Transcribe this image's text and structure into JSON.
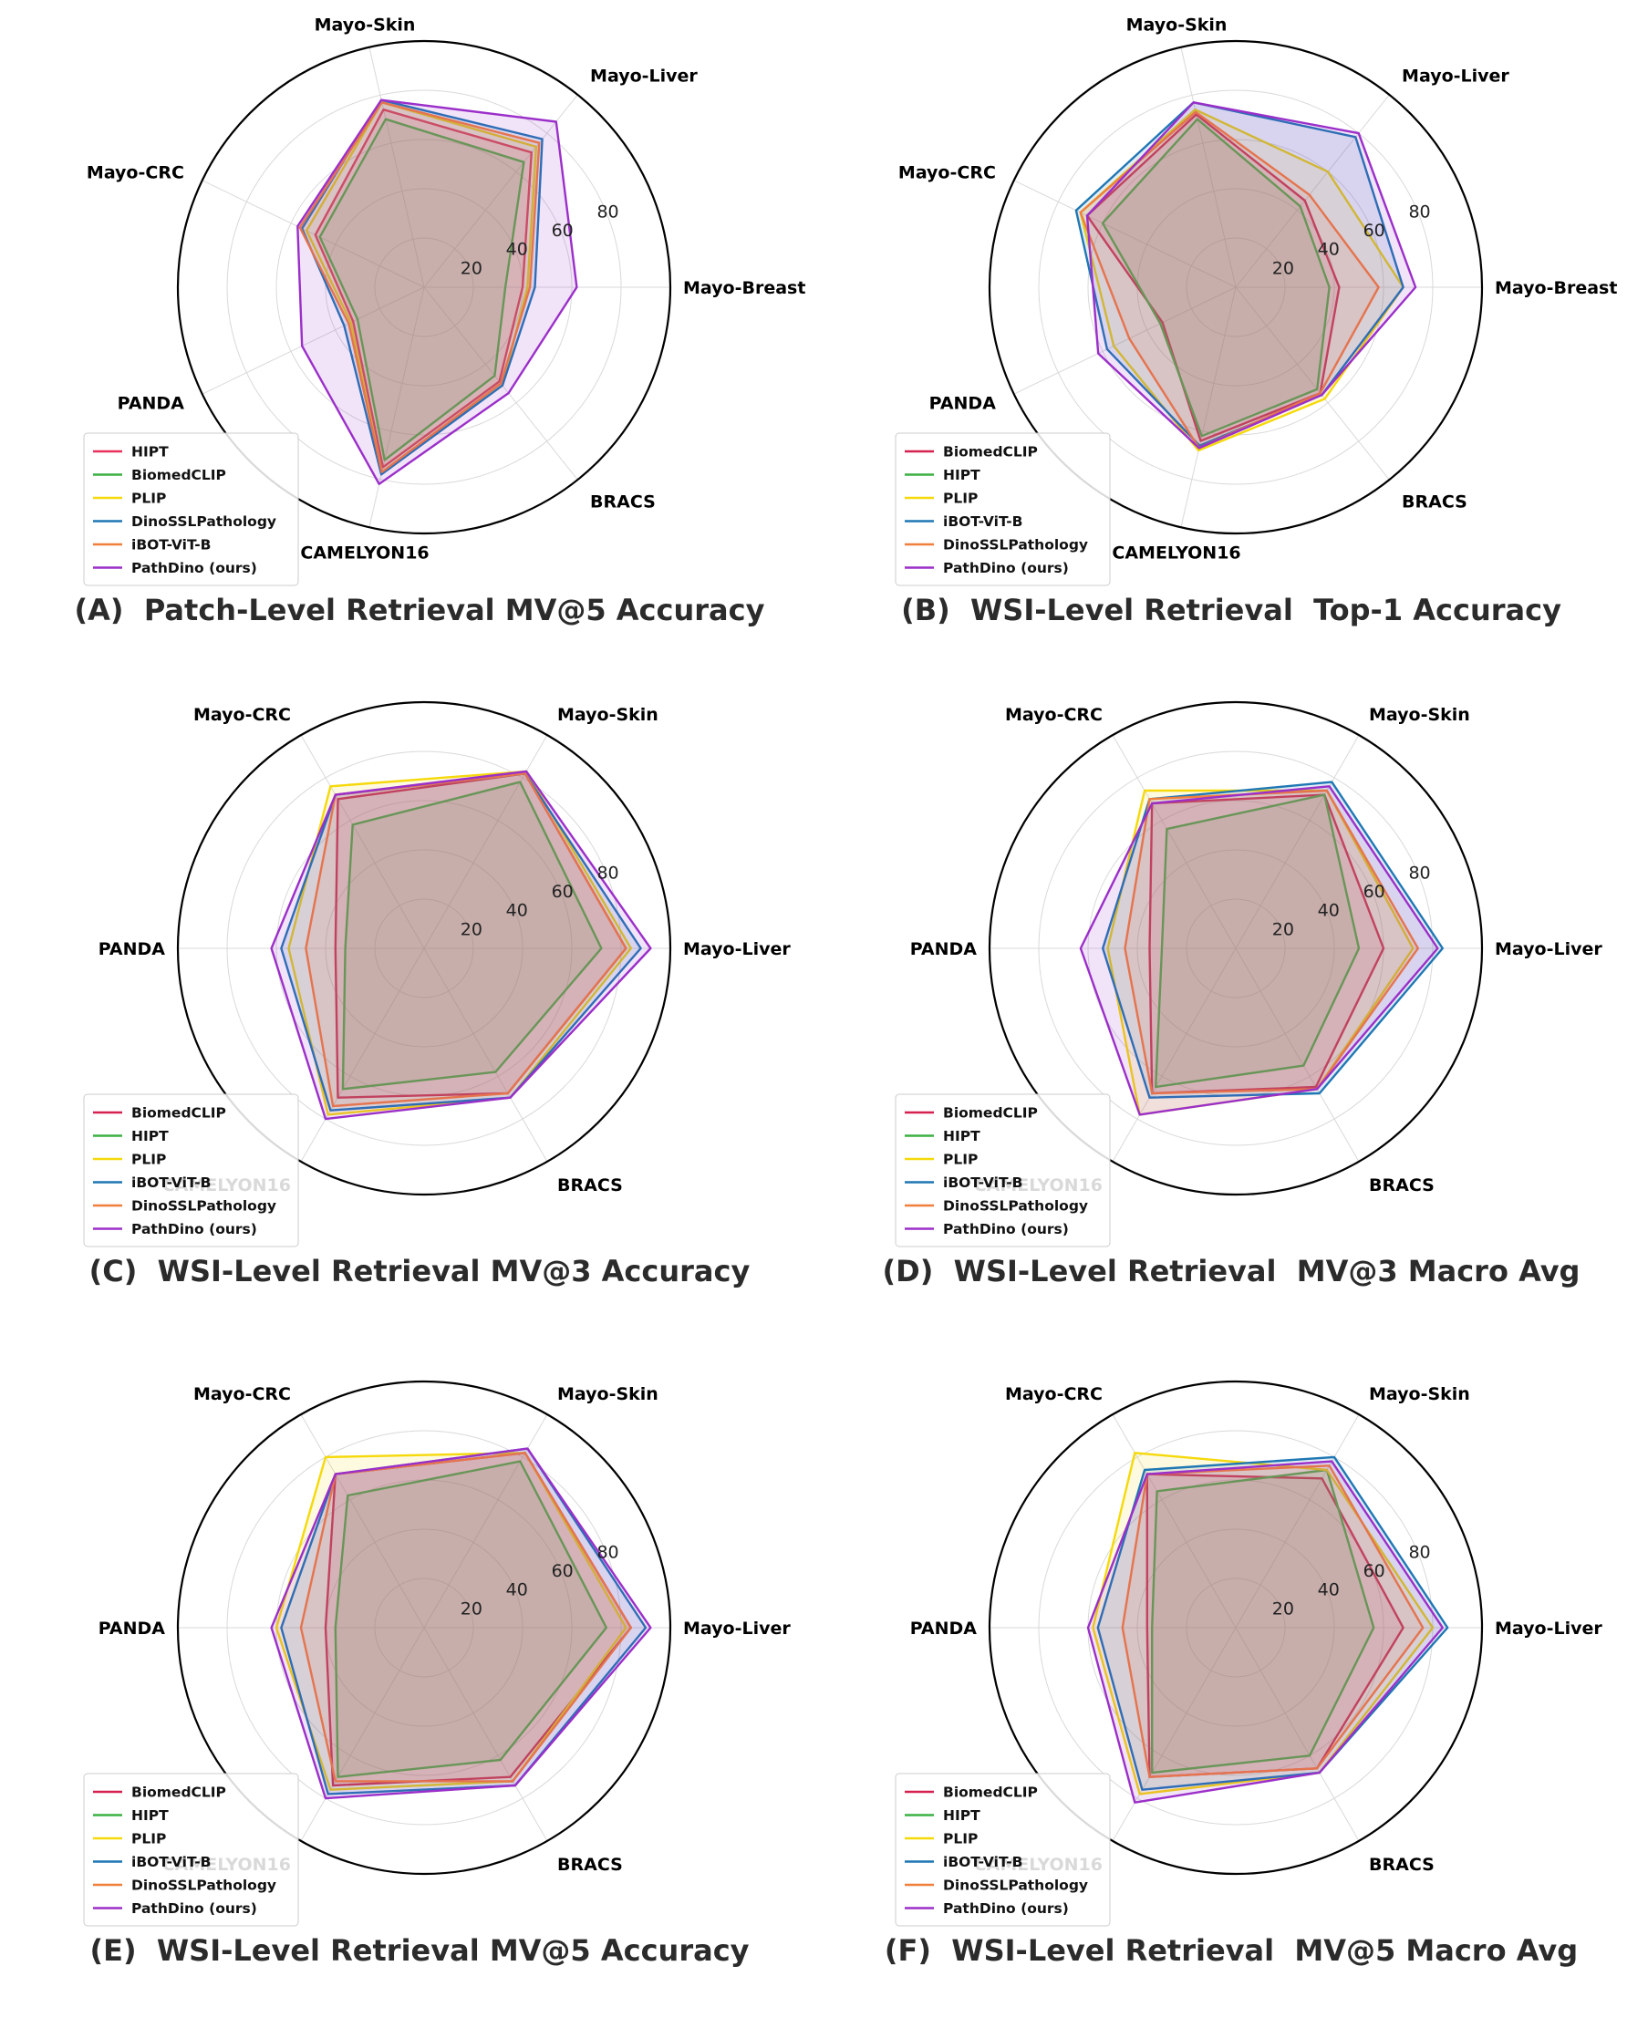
{
  "chart_data": [
    {
      "type": "radar",
      "panel_label": "(A)",
      "title": "Patch-Level Retrieval MV@5 Accuracy",
      "axes": [
        "Mayo-Breast",
        "Mayo-Liver",
        "Mayo-Skin",
        "Mayo-CRC",
        "PANDA",
        "CAMELYON16",
        "BRACS"
      ],
      "rlim": [
        0,
        100
      ],
      "ticks": [
        "20",
        "40",
        "60",
        "80"
      ],
      "legend_position": "lower-left",
      "series": [
        {
          "name": "HIPT",
          "color": "#e8305a",
          "values": [
            40,
            70,
            74,
            49,
            32,
            75,
            49
          ]
        },
        {
          "name": "BiomedCLIP",
          "color": "#3cb043",
          "values": [
            33,
            65,
            70,
            47,
            30,
            72,
            46
          ]
        },
        {
          "name": "PLIP",
          "color": "#f5d90a",
          "values": [
            42,
            73,
            77,
            53,
            33,
            77,
            51
          ]
        },
        {
          "name": "DinoSSLPathology",
          "color": "#1f77b4",
          "values": [
            45,
            77,
            78,
            55,
            36,
            78,
            51
          ]
        },
        {
          "name": "iBOT-ViT-B",
          "color": "#f07f3c",
          "values": [
            43,
            75,
            77,
            56,
            34,
            77,
            50
          ]
        },
        {
          "name": "PathDino (ours)",
          "color": "#9b2fc9",
          "values": [
            62,
            86,
            78,
            57,
            55,
            82,
            55
          ]
        }
      ]
    },
    {
      "type": "radar",
      "panel_label": "(B)",
      "title": "WSI-Level Retrieval  Top-1 Accuracy",
      "axes": [
        "Mayo-Breast",
        "Mayo-Liver",
        "Mayo-Skin",
        "Mayo-CRC",
        "PANDA",
        "CAMELYON16",
        "BRACS"
      ],
      "rlim": [
        0,
        100
      ],
      "ticks": [
        "20",
        "40",
        "60",
        "80"
      ],
      "legend_position": "lower-left",
      "series": [
        {
          "name": "BiomedCLIP",
          "color": "#d62050",
          "values": [
            42,
            45,
            72,
            67,
            33,
            64,
            55
          ]
        },
        {
          "name": "HIPT",
          "color": "#3cb043",
          "values": [
            38,
            42,
            70,
            60,
            34,
            62,
            53
          ]
        },
        {
          "name": "PLIP",
          "color": "#f5d90a",
          "values": [
            68,
            60,
            74,
            70,
            55,
            68,
            58
          ]
        },
        {
          "name": "iBOT-ViT-B",
          "color": "#1f77b4",
          "values": [
            68,
            78,
            77,
            72,
            58,
            66,
            56
          ]
        },
        {
          "name": "DinoSSLPathology",
          "color": "#f07f3c",
          "values": [
            58,
            48,
            73,
            70,
            48,
            67,
            55
          ]
        },
        {
          "name": "PathDino (ours)",
          "color": "#9b2fc9",
          "values": [
            73,
            80,
            77,
            67,
            62,
            67,
            56
          ]
        }
      ]
    },
    {
      "type": "radar",
      "panel_label": "(C)",
      "title": "WSI-Level Retrieval MV@3 Accuracy",
      "axes": [
        "Mayo-Liver",
        "Mayo-Skin",
        "Mayo-CRC",
        "PANDA",
        "CAMELYON16",
        "BRACS"
      ],
      "rlim": [
        0,
        100
      ],
      "ticks": [
        "20",
        "40",
        "60",
        "80"
      ],
      "legend_position": "lower-left",
      "series": [
        {
          "name": "BiomedCLIP",
          "color": "#d62050",
          "values": [
            82,
            82,
            70,
            36,
            70,
            68
          ]
        },
        {
          "name": "HIPT",
          "color": "#3cb043",
          "values": [
            72,
            78,
            58,
            32,
            66,
            58
          ]
        },
        {
          "name": "PLIP",
          "color": "#f5d90a",
          "values": [
            84,
            83,
            76,
            55,
            78,
            70
          ]
        },
        {
          "name": "iBOT-ViT-B",
          "color": "#1f77b4",
          "values": [
            88,
            82,
            72,
            58,
            76,
            70
          ]
        },
        {
          "name": "DinoSSLPathology",
          "color": "#f07f3c",
          "values": [
            82,
            82,
            72,
            48,
            74,
            68
          ]
        },
        {
          "name": "PathDino (ours)",
          "color": "#9b2fc9",
          "values": [
            92,
            83,
            72,
            62,
            80,
            70
          ]
        }
      ]
    },
    {
      "type": "radar",
      "panel_label": "(D)",
      "title": "WSI-Level Retrieval  MV@3 Macro Avg",
      "axes": [
        "Mayo-Liver",
        "Mayo-Skin",
        "Mayo-CRC",
        "PANDA",
        "CAMELYON16",
        "BRACS"
      ],
      "rlim": [
        0,
        100
      ],
      "ticks": [
        "20",
        "40",
        "60",
        "80"
      ],
      "legend_position": "lower-left",
      "series": [
        {
          "name": "BiomedCLIP",
          "color": "#d62050",
          "values": [
            60,
            72,
            68,
            35,
            68,
            65
          ]
        },
        {
          "name": "HIPT",
          "color": "#3cb043",
          "values": [
            50,
            72,
            56,
            30,
            65,
            55
          ]
        },
        {
          "name": "PLIP",
          "color": "#f5d90a",
          "values": [
            72,
            74,
            74,
            52,
            78,
            66
          ]
        },
        {
          "name": "iBOT-ViT-B",
          "color": "#1f77b4",
          "values": [
            84,
            78,
            70,
            54,
            70,
            68
          ]
        },
        {
          "name": "DinoSSLPathology",
          "color": "#f07f3c",
          "values": [
            74,
            74,
            70,
            45,
            68,
            66
          ]
        },
        {
          "name": "PathDino (ours)",
          "color": "#9b2fc9",
          "values": [
            82,
            76,
            68,
            63,
            78,
            66
          ]
        }
      ]
    },
    {
      "type": "radar",
      "panel_label": "(E)",
      "title": "WSI-Level Retrieval MV@5 Accuracy",
      "axes": [
        "Mayo-Liver",
        "Mayo-Skin",
        "Mayo-CRC",
        "PANDA",
        "CAMELYON16",
        "BRACS"
      ],
      "rlim": [
        0,
        100
      ],
      "ticks": [
        "20",
        "40",
        "60",
        "80"
      ],
      "legend_position": "lower-left",
      "series": [
        {
          "name": "BiomedCLIP",
          "color": "#d62050",
          "values": [
            84,
            82,
            72,
            40,
            74,
            70
          ]
        },
        {
          "name": "HIPT",
          "color": "#3cb043",
          "values": [
            74,
            78,
            62,
            36,
            70,
            62
          ]
        },
        {
          "name": "PLIP",
          "color": "#f5d90a",
          "values": [
            82,
            82,
            80,
            60,
            76,
            72
          ]
        },
        {
          "name": "iBOT-ViT-B",
          "color": "#1f77b4",
          "values": [
            90,
            84,
            72,
            58,
            78,
            74
          ]
        },
        {
          "name": "DinoSSLPathology",
          "color": "#f07f3c",
          "values": [
            84,
            82,
            72,
            50,
            72,
            72
          ]
        },
        {
          "name": "PathDino (ours)",
          "color": "#9b2fc9",
          "values": [
            92,
            84,
            72,
            62,
            80,
            74
          ]
        }
      ]
    },
    {
      "type": "radar",
      "panel_label": "(F)",
      "title": "WSI-Level Retrieval  MV@5 Macro Avg",
      "axes": [
        "Mayo-Liver",
        "Mayo-Skin",
        "Mayo-CRC",
        "PANDA",
        "CAMELYON16",
        "BRACS"
      ],
      "rlim": [
        0,
        100
      ],
      "ticks": [
        "20",
        "40",
        "60",
        "80"
      ],
      "legend_position": "lower-left",
      "series": [
        {
          "name": "BiomedCLIP",
          "color": "#d62050",
          "values": [
            68,
            70,
            72,
            36,
            70,
            66
          ]
        },
        {
          "name": "HIPT",
          "color": "#3cb043",
          "values": [
            56,
            74,
            64,
            34,
            68,
            60
          ]
        },
        {
          "name": "PLIP",
          "color": "#f5d90a",
          "values": [
            80,
            74,
            82,
            58,
            78,
            68
          ]
        },
        {
          "name": "iBOT-ViT-B",
          "color": "#1f77b4",
          "values": [
            86,
            80,
            74,
            56,
            76,
            68
          ]
        },
        {
          "name": "DinoSSLPathology",
          "color": "#f07f3c",
          "values": [
            76,
            76,
            72,
            46,
            70,
            66
          ]
        },
        {
          "name": "PathDino (ours)",
          "color": "#9b2fc9",
          "values": [
            84,
            78,
            72,
            60,
            82,
            68
          ]
        }
      ]
    }
  ]
}
